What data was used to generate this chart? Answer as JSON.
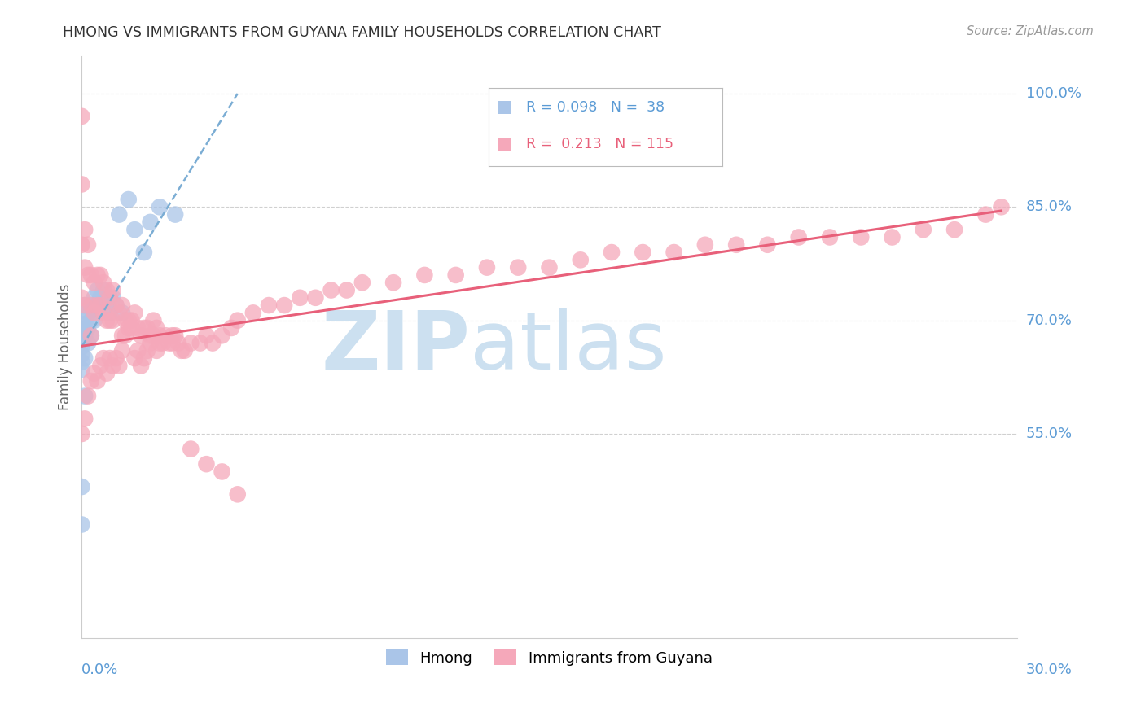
{
  "title": "HMONG VS IMMIGRANTS FROM GUYANA FAMILY HOUSEHOLDS CORRELATION CHART",
  "source": "Source: ZipAtlas.com",
  "ylabel": "Family Households",
  "legend_blue_R": "0.098",
  "legend_blue_N": "38",
  "legend_pink_R": "0.213",
  "legend_pink_N": "115",
  "title_color": "#333333",
  "source_color": "#999999",
  "axis_label_color": "#5b9bd5",
  "blue_scatter_color": "#aac5e8",
  "pink_scatter_color": "#f5a8ba",
  "blue_line_color": "#7badd4",
  "pink_line_color": "#e8607a",
  "grid_color": "#d0d0d0",
  "watermark_color": "#cce0f0",
  "xmin": 0.0,
  "xmax": 0.3,
  "ymin": 0.28,
  "ymax": 1.05,
  "blue_points_x": [
    0.0,
    0.0,
    0.0,
    0.0,
    0.0,
    0.0,
    0.0,
    0.0,
    0.0,
    0.001,
    0.001,
    0.001,
    0.001,
    0.001,
    0.002,
    0.002,
    0.002,
    0.003,
    0.003,
    0.003,
    0.004,
    0.004,
    0.005,
    0.005,
    0.006,
    0.007,
    0.008,
    0.009,
    0.01,
    0.011,
    0.012,
    0.013,
    0.015,
    0.017,
    0.02,
    0.022,
    0.025,
    0.03
  ],
  "blue_points_y": [
    0.695,
    0.685,
    0.675,
    0.665,
    0.655,
    0.645,
    0.635,
    0.48,
    0.43,
    0.72,
    0.7,
    0.68,
    0.65,
    0.6,
    0.71,
    0.69,
    0.67,
    0.72,
    0.7,
    0.68,
    0.73,
    0.7,
    0.74,
    0.72,
    0.73,
    0.74,
    0.72,
    0.71,
    0.73,
    0.72,
    0.84,
    0.71,
    0.86,
    0.82,
    0.79,
    0.83,
    0.85,
    0.84
  ],
  "pink_points_x": [
    0.0,
    0.0,
    0.0,
    0.0,
    0.001,
    0.001,
    0.001,
    0.002,
    0.002,
    0.003,
    0.003,
    0.003,
    0.004,
    0.004,
    0.005,
    0.005,
    0.006,
    0.006,
    0.007,
    0.007,
    0.008,
    0.008,
    0.009,
    0.009,
    0.01,
    0.01,
    0.011,
    0.012,
    0.013,
    0.013,
    0.014,
    0.015,
    0.016,
    0.017,
    0.018,
    0.019,
    0.02,
    0.021,
    0.022,
    0.023,
    0.024,
    0.025,
    0.026,
    0.028,
    0.029,
    0.03,
    0.031,
    0.033,
    0.035,
    0.038,
    0.04,
    0.042,
    0.045,
    0.048,
    0.05,
    0.055,
    0.06,
    0.065,
    0.07,
    0.075,
    0.08,
    0.085,
    0.09,
    0.1,
    0.11,
    0.12,
    0.13,
    0.14,
    0.15,
    0.16,
    0.17,
    0.18,
    0.19,
    0.2,
    0.21,
    0.22,
    0.23,
    0.24,
    0.25,
    0.26,
    0.27,
    0.28,
    0.29,
    0.295,
    0.0,
    0.001,
    0.002,
    0.003,
    0.004,
    0.005,
    0.006,
    0.007,
    0.008,
    0.009,
    0.01,
    0.011,
    0.012,
    0.013,
    0.014,
    0.015,
    0.016,
    0.017,
    0.018,
    0.019,
    0.02,
    0.021,
    0.022,
    0.023,
    0.024,
    0.025,
    0.027,
    0.029,
    0.032,
    0.035,
    0.04,
    0.045,
    0.05
  ],
  "pink_points_y": [
    0.97,
    0.88,
    0.8,
    0.73,
    0.82,
    0.77,
    0.72,
    0.8,
    0.76,
    0.76,
    0.72,
    0.68,
    0.75,
    0.71,
    0.76,
    0.72,
    0.76,
    0.72,
    0.75,
    0.71,
    0.74,
    0.7,
    0.73,
    0.7,
    0.74,
    0.7,
    0.72,
    0.71,
    0.72,
    0.68,
    0.7,
    0.69,
    0.7,
    0.71,
    0.69,
    0.68,
    0.69,
    0.69,
    0.68,
    0.7,
    0.69,
    0.68,
    0.67,
    0.67,
    0.68,
    0.68,
    0.67,
    0.66,
    0.67,
    0.67,
    0.68,
    0.67,
    0.68,
    0.69,
    0.7,
    0.71,
    0.72,
    0.72,
    0.73,
    0.73,
    0.74,
    0.74,
    0.75,
    0.75,
    0.76,
    0.76,
    0.77,
    0.77,
    0.77,
    0.78,
    0.79,
    0.79,
    0.79,
    0.8,
    0.8,
    0.8,
    0.81,
    0.81,
    0.81,
    0.81,
    0.82,
    0.82,
    0.84,
    0.85,
    0.55,
    0.57,
    0.6,
    0.62,
    0.63,
    0.62,
    0.64,
    0.65,
    0.63,
    0.65,
    0.64,
    0.65,
    0.64,
    0.66,
    0.68,
    0.7,
    0.69,
    0.65,
    0.66,
    0.64,
    0.65,
    0.66,
    0.67,
    0.68,
    0.66,
    0.67,
    0.68,
    0.67,
    0.66,
    0.53,
    0.51,
    0.5,
    0.47
  ],
  "blue_trend_x": [
    0.0,
    0.05
  ],
  "blue_trend_y": [
    0.665,
    1.0
  ],
  "pink_trend_x": [
    0.0,
    0.295
  ],
  "pink_trend_y": [
    0.666,
    0.845
  ],
  "ytick_values": [
    1.0,
    0.85,
    0.7,
    0.55
  ],
  "ytick_labels": [
    "100.0%",
    "85.0%",
    "70.0%",
    "55.0%"
  ],
  "bottom_right_label": "30.0%",
  "figsize": [
    14.06,
    8.92
  ],
  "dpi": 100
}
